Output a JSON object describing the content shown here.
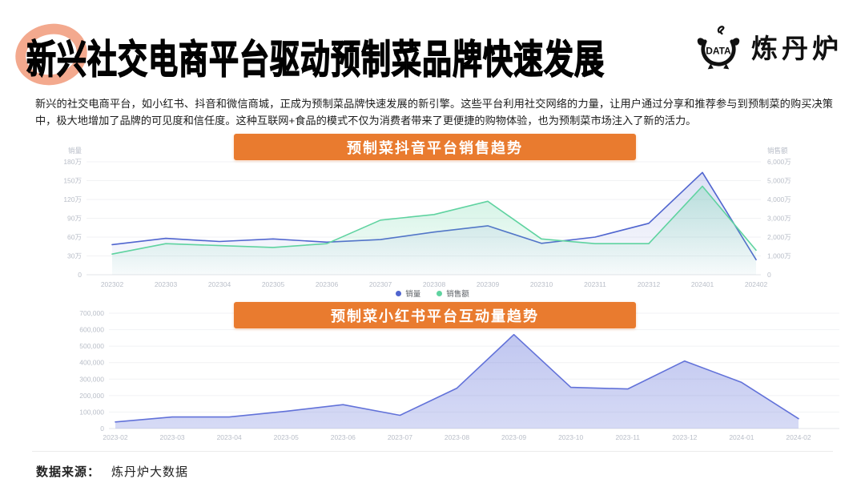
{
  "header": {
    "title": "新兴社交电商平台驱动预制菜品牌快速发展",
    "logo_text": "炼丹炉",
    "logo_icon": "cauldron-data-icon",
    "logo_icon_label": "DATA"
  },
  "intro": "新兴的社交电商平台，如小红书、抖音和微信商城，正成为预制菜品牌快速发展的新引擎。这些平台利用社交网络的力量，让用户通过分享和推荐参与到预制菜的购买决策中，极大地增加了品牌的可见度和信任度。这种互联网+食品的模式不仅为消费者带来了更便捷的购物体验，也为预制菜市场注入了新的活力。",
  "colors": {
    "accent_orange": "#E97B2F",
    "series_blue": "#5065CF",
    "series_green": "#5FD3A0",
    "area_periwinkle": "#8A97E6",
    "grid": "#F1F2F4",
    "tick_text": "#B9BEC8"
  },
  "chart_data": [
    {
      "type": "line",
      "title": "预制菜抖音平台销售趋势",
      "categories": [
        "202302",
        "202303",
        "202304",
        "202305",
        "202306",
        "202307",
        "202308",
        "202309",
        "202310",
        "202311",
        "202312",
        "202401",
        "202402"
      ],
      "series": [
        {
          "name": "销量",
          "axis": "left",
          "color": "#5065CF",
          "fill_top": 0.2,
          "fill_bottom": 0.02,
          "values": [
            48,
            58,
            53,
            57,
            52,
            56,
            68,
            78,
            50,
            60,
            82,
            163,
            24
          ]
        },
        {
          "name": "销售额",
          "axis": "right",
          "color": "#5FD3A0",
          "fill_top": 0.3,
          "fill_bottom": 0.03,
          "values": [
            1100,
            1650,
            1550,
            1450,
            1650,
            2900,
            3200,
            3900,
            1900,
            1650,
            1650,
            4700,
            1300
          ]
        }
      ],
      "left_axis": {
        "title": "销量",
        "unit": "万",
        "max": 180,
        "ticks": [
          "180万",
          "150万",
          "120万",
          "90万",
          "60万",
          "30万",
          "0"
        ]
      },
      "right_axis": {
        "title": "销售额",
        "unit": "万",
        "max": 6000,
        "ticks": [
          "6,000万",
          "5,000万",
          "4,000万",
          "3,000万",
          "2,000万",
          "1,000万",
          "0"
        ]
      },
      "legend": [
        "销量",
        "销售额"
      ],
      "legend_position": "bottom-center",
      "grid": true
    },
    {
      "type": "area",
      "title": "预制菜小红书平台互动量趋势",
      "categories": [
        "2023-02",
        "2023-03",
        "2023-04",
        "2023-05",
        "2023-06",
        "2023-07",
        "2023-08",
        "2023-09",
        "2023-10",
        "2023-11",
        "2023-12",
        "2024-01",
        "2024-02"
      ],
      "series": [
        {
          "name": "互动量",
          "axis": "left",
          "color": "#6272D9",
          "fill_top": 0.4,
          "fill_bottom": 0.26,
          "values": [
            40000,
            70000,
            70000,
            105000,
            145000,
            80000,
            245000,
            570000,
            250000,
            240000,
            410000,
            280000,
            60000
          ]
        }
      ],
      "left_axis": {
        "title": "",
        "max": 700000,
        "ticks": [
          "700,000",
          "600,000",
          "500,000",
          "400,000",
          "300,000",
          "200,000",
          "100,000",
          "0"
        ]
      },
      "legend": [],
      "grid": true
    }
  ],
  "footer": {
    "label": "数据来源：",
    "source": "炼丹炉大数据"
  }
}
